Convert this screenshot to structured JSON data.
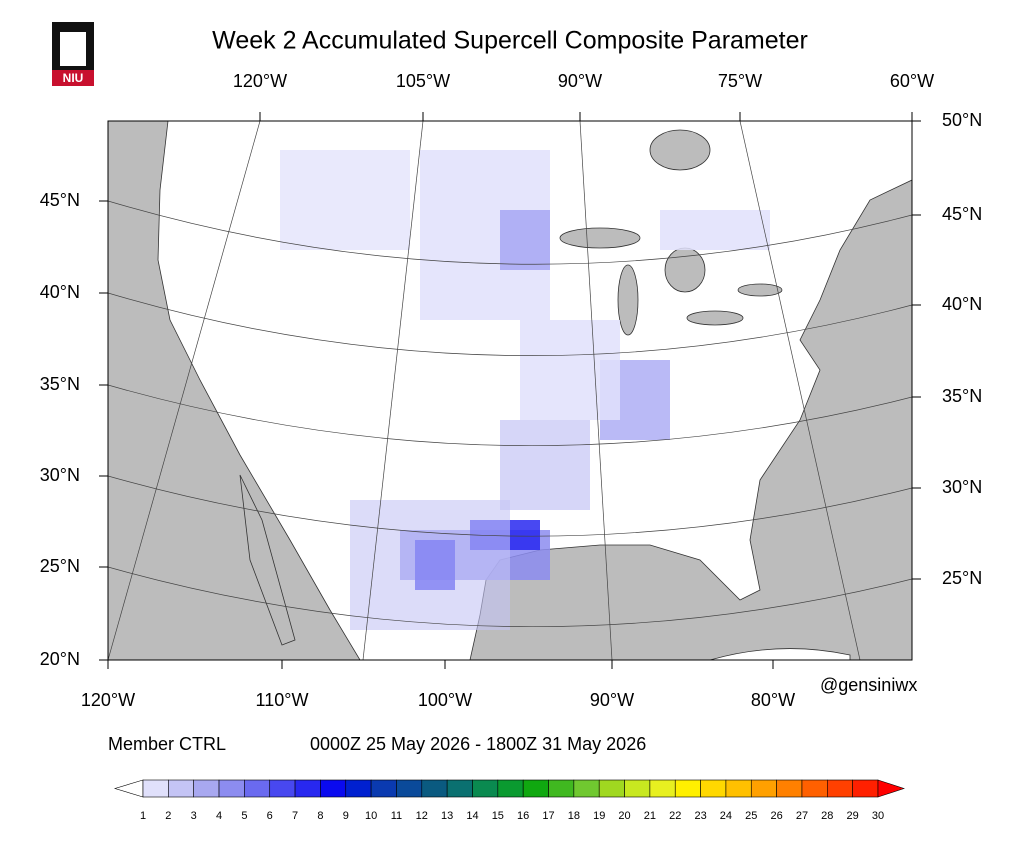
{
  "header": {
    "title": "Week 2 Accumulated Supercell Composite Parameter",
    "logo_text": "NIU"
  },
  "map": {
    "top_labels": [
      "120°W",
      "105°W",
      "90°W",
      "75°W",
      "60°W"
    ],
    "bottom_labels": [
      "120°W",
      "110°W",
      "100°W",
      "90°W",
      "80°W"
    ],
    "left_labels": [
      "45°N",
      "40°N",
      "35°N",
      "30°N",
      "25°N",
      "20°N"
    ],
    "right_labels": [
      "50°N",
      "45°N",
      "40°N",
      "35°N",
      "30°N",
      "25°N"
    ],
    "credit": "@gensiniwx"
  },
  "footer": {
    "member": "Member CTRL",
    "period": "0000Z 25  May  2026  - 1800Z 31  May  2026"
  },
  "colorbar": {
    "levels": [
      1,
      2,
      3,
      4,
      5,
      6,
      7,
      8,
      9,
      10,
      11,
      12,
      13,
      14,
      15,
      16,
      17,
      18,
      19,
      20,
      21,
      22,
      23,
      24,
      25,
      26,
      27,
      28,
      29,
      30
    ],
    "colors": [
      "#ffffff",
      "#e0e0fb",
      "#c4c4f5",
      "#a8a8f0",
      "#8c8cf0",
      "#6a6af0",
      "#4848f0",
      "#2828f0",
      "#0a0aef",
      "#0020d0",
      "#0a3ab0",
      "#0a4a9a",
      "#0a5a80",
      "#0a7070",
      "#0a8a50",
      "#0a9a30",
      "#10a810",
      "#40b820",
      "#70c830",
      "#a0d820",
      "#c8e820",
      "#e8f020",
      "#fff000",
      "#ffd800",
      "#ffc000",
      "#ffa000",
      "#ff8000",
      "#ff6000",
      "#ff4000",
      "#ff2000",
      "#ff0000"
    ]
  }
}
